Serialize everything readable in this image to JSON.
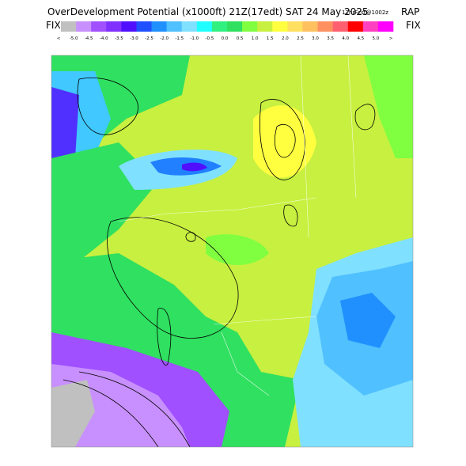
{
  "header": {
    "title": "OverDevelopment Potential (x1000ft) 21Z(17edt) SAT 24 May 2025",
    "forecast": "12hrFcst@1002z",
    "model": "RAP",
    "fix_left": "FIX",
    "fix_right": "FIX"
  },
  "legend": {
    "labels": [
      "<",
      "-5.0",
      "-4.5",
      "-4.0",
      "-3.5",
      "-3.0",
      "-2.5",
      "-2.0",
      "-1.5",
      "-1.0",
      "-0.5",
      "0.0",
      "0.5",
      "1.0",
      "1.5",
      "2.0",
      "2.5",
      "3.0",
      "3.5",
      "4.0",
      "4.5",
      "5.0",
      ">"
    ],
    "colors": [
      "#c0c0c0",
      "#c890ff",
      "#a050ff",
      "#8030ff",
      "#5010ff",
      "#2050ff",
      "#2090ff",
      "#50c0ff",
      "#80e0ff",
      "#20ffff",
      "#30f080",
      "#30e060",
      "#80ff40",
      "#c8f040",
      "#ffff40",
      "#ffe060",
      "#ffc060",
      "#ff9060",
      "#ff6070",
      "#ff0000",
      "#ff40c0",
      "#ff00ff"
    ]
  }
}
